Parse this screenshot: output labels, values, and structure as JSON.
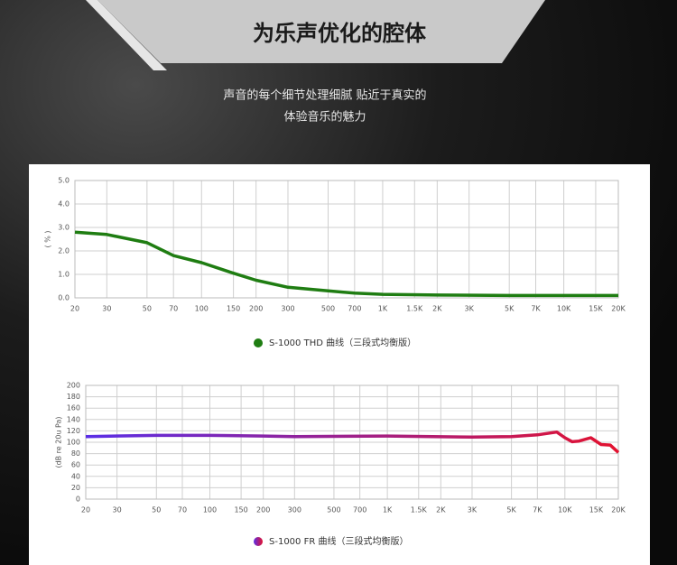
{
  "banner": {
    "title": "为乐声优化的腔体",
    "subtitle": [
      "声音的每个细节处理细腻 贴近于真实的",
      "体验音乐的魅力"
    ]
  },
  "chart_data": [
    {
      "type": "line",
      "ylabel": "( % )",
      "log_x": true,
      "grid": true,
      "xlim": [
        20,
        20000
      ],
      "xticks": [
        20,
        30,
        50,
        70,
        100,
        150,
        200,
        300,
        500,
        700,
        {
          "value": 1000,
          "label": "1K"
        },
        {
          "value": 1500,
          "label": "1.5K"
        },
        {
          "value": 2000,
          "label": "2K"
        },
        {
          "value": 3000,
          "label": "3K"
        },
        {
          "value": 5000,
          "label": "5K"
        },
        {
          "value": 7000,
          "label": "7K"
        },
        {
          "value": 10000,
          "label": "10K"
        },
        {
          "value": 15000,
          "label": "15K"
        },
        {
          "value": 20000,
          "label": "20K"
        }
      ],
      "ylim": [
        0,
        5
      ],
      "yticks": [
        {
          "value": 0,
          "label": "0.0"
        },
        {
          "value": 1,
          "label": "1.0"
        },
        {
          "value": 2,
          "label": "2.0"
        },
        {
          "value": 3,
          "label": "3.0"
        },
        {
          "value": 4,
          "label": "4.0"
        },
        {
          "value": 5,
          "label": "5.0"
        }
      ],
      "x": [
        20,
        30,
        50,
        70,
        100,
        150,
        200,
        300,
        500,
        700,
        1000,
        2000,
        5000,
        20000
      ],
      "series": [
        {
          "name": "S-1000 THD 曲线（三段式均衡版）",
          "colors": [
            "#1f7d12",
            "#1f7d12"
          ],
          "values": [
            2.8,
            2.7,
            2.35,
            1.8,
            1.5,
            1.05,
            0.75,
            0.45,
            0.3,
            0.2,
            0.15,
            0.12,
            0.1,
            0.1
          ]
        }
      ]
    },
    {
      "type": "line",
      "ylabel": "(dB re 20u Pa)",
      "log_x": true,
      "grid": true,
      "xlim": [
        20,
        20000
      ],
      "xticks": [
        20,
        30,
        50,
        70,
        100,
        150,
        200,
        300,
        500,
        700,
        {
          "value": 1000,
          "label": "1K"
        },
        {
          "value": 1500,
          "label": "1.5K"
        },
        {
          "value": 2000,
          "label": "2K"
        },
        {
          "value": 3000,
          "label": "3K"
        },
        {
          "value": 5000,
          "label": "5K"
        },
        {
          "value": 7000,
          "label": "7K"
        },
        {
          "value": 10000,
          "label": "10K"
        },
        {
          "value": 15000,
          "label": "15K"
        },
        {
          "value": 20000,
          "label": "20K"
        }
      ],
      "ylim": [
        0,
        200
      ],
      "yticks": [
        0,
        20,
        40,
        60,
        80,
        100,
        120,
        140,
        160,
        180,
        200
      ],
      "x": [
        20,
        50,
        100,
        200,
        300,
        1000,
        3000,
        5000,
        7000,
        9000,
        10000,
        11000,
        12000,
        14000,
        16000,
        18000,
        20000
      ],
      "series": [
        {
          "name": "S-1000 FR 曲线（三段式均衡版）",
          "colors": [
            "#5a2ee6",
            "#e3122f"
          ],
          "values": [
            110,
            112,
            112,
            111,
            110,
            111,
            109,
            110,
            113,
            118,
            108,
            101,
            102,
            108,
            96,
            95,
            82
          ]
        }
      ]
    }
  ]
}
